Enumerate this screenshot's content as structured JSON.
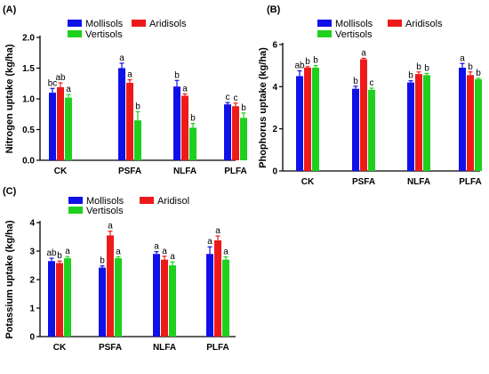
{
  "colors": {
    "Mollisols": "#1010e8",
    "Aridisols": "#ee1a1a",
    "Vertisols": "#1fd01f"
  },
  "chart_data": [
    {
      "type": "bar",
      "panel_label": "(A)",
      "ylabel": "Nitrogen uptake (kg/ha)",
      "categories": [
        "CK",
        "PSFA",
        "NLFA",
        "PLFA"
      ],
      "ylim": [
        0,
        2.0
      ],
      "yticks": [
        "0.0",
        "0.5",
        "1.0",
        "1.5",
        "2.0"
      ],
      "ytick_values": [
        0,
        0.5,
        1.0,
        1.5,
        2.0
      ],
      "legend_placement": "top",
      "series": [
        {
          "name": "Mollisols",
          "values": [
            1.1,
            1.5,
            1.2,
            0.91
          ],
          "errors": [
            0.07,
            0.08,
            0.1,
            0.03
          ],
          "labels": [
            "bc",
            "a",
            "b",
            "c"
          ]
        },
        {
          "name": "Aridisols",
          "values": [
            1.19,
            1.26,
            1.05,
            0.88
          ],
          "errors": [
            0.07,
            0.05,
            0.03,
            0.05
          ],
          "labels": [
            "ab",
            "a",
            "a",
            "c"
          ]
        },
        {
          "name": "Vertisols",
          "values": [
            1.02,
            0.65,
            0.53,
            0.69
          ],
          "errors": [
            0.05,
            0.14,
            0.07,
            0.08
          ],
          "labels": [
            "a",
            "b",
            "b",
            "b"
          ]
        }
      ]
    },
    {
      "type": "bar",
      "panel_label": "(B)",
      "ylabel": "Phophorus uptake (kg/ha)",
      "categories": [
        "CK",
        "PSFA",
        "NLFA",
        "PLFA"
      ],
      "ylim": [
        0,
        6
      ],
      "yticks": [
        "0",
        "2",
        "4",
        "6"
      ],
      "ytick_values": [
        0,
        2,
        4,
        6
      ],
      "legend_placement": "top",
      "series": [
        {
          "name": "Mollisols",
          "values": [
            4.5,
            3.9,
            4.2,
            4.9
          ],
          "errors": [
            0.25,
            0.12,
            0.08,
            0.2
          ],
          "labels": [
            "ab",
            "b",
            "b",
            "a"
          ]
        },
        {
          "name": "Aridisols",
          "values": [
            4.9,
            5.3,
            4.6,
            4.55
          ],
          "errors": [
            0.05,
            0.05,
            0.1,
            0.15
          ],
          "labels": [
            "b",
            "a",
            "b",
            "b"
          ]
        },
        {
          "name": "Vertisols",
          "values": [
            4.9,
            3.85,
            4.55,
            4.35
          ],
          "errors": [
            0.1,
            0.08,
            0.08,
            0.05
          ],
          "labels": [
            "b",
            "c",
            "b",
            "b"
          ]
        }
      ]
    },
    {
      "type": "bar",
      "panel_label": "(C)",
      "ylabel": "Potassium uptake (kg/ha)",
      "categories": [
        "CK",
        "PSFA",
        "NLFA",
        "PLFA"
      ],
      "ylim": [
        0,
        4
      ],
      "yticks": [
        "0",
        "1",
        "2",
        "3",
        "4"
      ],
      "ytick_values": [
        0,
        1,
        2,
        3,
        4
      ],
      "legend_placement": "top",
      "series": [
        {
          "name": "Mollisols",
          "values": [
            2.65,
            2.42,
            2.9,
            2.9
          ],
          "errors": [
            0.1,
            0.06,
            0.08,
            0.25
          ],
          "labels": [
            "ab",
            "b",
            "a",
            "a"
          ]
        },
        {
          "name": "Aridisol",
          "values": [
            2.58,
            3.55,
            2.7,
            3.38
          ],
          "errors": [
            0.07,
            0.15,
            0.12,
            0.15
          ],
          "labels": [
            "b",
            "a",
            "a",
            "a"
          ]
        },
        {
          "name": "Vertisols",
          "values": [
            2.75,
            2.75,
            2.5,
            2.7
          ],
          "errors": [
            0.06,
            0.05,
            0.12,
            0.1
          ],
          "labels": [
            "a",
            "a",
            "a",
            "a"
          ]
        }
      ]
    }
  ]
}
